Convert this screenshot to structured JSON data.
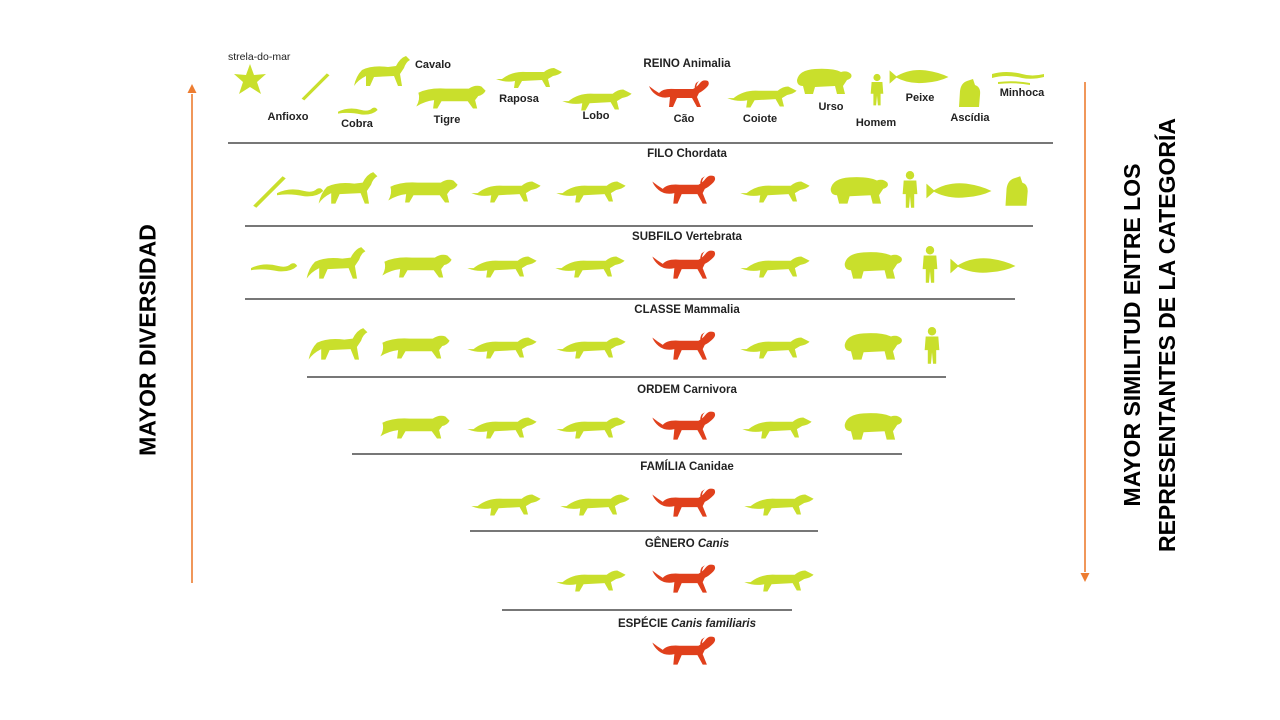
{
  "side_labels": {
    "left": "MAYOR DIVERSIDAD",
    "right_line1": "MAYOR SIMILITUD ENTRE LOS",
    "right_line2": "REPRESENTANTES DE LA CATEGORÍA"
  },
  "colors": {
    "arrow": "#ed7d31",
    "animal": "#c9df2c",
    "highlight": "#e0401c",
    "line": "#4a4a4a"
  },
  "levels": [
    {
      "rank": "REINO",
      "taxon": "Animalia",
      "taxon_italic": false
    },
    {
      "rank": "FILO",
      "taxon": "Chordata",
      "taxon_italic": false
    },
    {
      "rank": "SUBFILO",
      "taxon": "Vertebrata",
      "taxon_italic": false
    },
    {
      "rank": "CLASSE",
      "taxon": "Mammalia",
      "taxon_italic": false
    },
    {
      "rank": "ORDEM",
      "taxon": "Carnivora",
      "taxon_italic": false
    },
    {
      "rank": "FAMÍLIA",
      "taxon": "Canidae",
      "taxon_italic": false
    },
    {
      "rank": "GÊNERO",
      "taxon": "Canis",
      "taxon_italic": true
    },
    {
      "rank": "ESPÉCIE",
      "taxon": "Canis familiaris",
      "taxon_italic": true
    }
  ],
  "kingdom_animals": [
    {
      "name": "Estrela-do-mar",
      "label": "strela-do-mar",
      "icon": "starfish-icon"
    },
    {
      "name": "Anfioxo",
      "label": "Anfioxo",
      "icon": "amphioxus-icon"
    },
    {
      "name": "Cobra",
      "label": "Cobra",
      "icon": "snake-icon"
    },
    {
      "name": "Cavalo",
      "label": "Cavalo",
      "icon": "horse-icon"
    },
    {
      "name": "Tigre",
      "label": "Tigre",
      "icon": "tiger-icon"
    },
    {
      "name": "Raposa",
      "label": "Raposa",
      "icon": "fox-icon"
    },
    {
      "name": "Lobo",
      "label": "Lobo",
      "icon": "wolf-icon"
    },
    {
      "name": "Cão",
      "label": "Cão",
      "icon": "dog-icon",
      "highlight": true
    },
    {
      "name": "Coiote",
      "label": "Coiote",
      "icon": "coyote-icon"
    },
    {
      "name": "Urso",
      "label": "Urso",
      "icon": "bear-icon"
    },
    {
      "name": "Homem",
      "label": "Homem",
      "icon": "human-icon"
    },
    {
      "name": "Peixe",
      "label": "Peixe",
      "icon": "fish-icon"
    },
    {
      "name": "Ascídia",
      "label": "Ascídia",
      "icon": "sea-squirt-icon"
    },
    {
      "name": "Minhoca",
      "label": "Minhoca",
      "icon": "earthworm-icon"
    }
  ],
  "level_members": [
    [
      "Anfioxo",
      "Cobra",
      "Cavalo",
      "Tigre",
      "Raposa",
      "Lobo",
      "Cão",
      "Coiote",
      "Urso",
      "Homem",
      "Peixe",
      "Ascídia"
    ],
    [
      "Cobra",
      "Cavalo",
      "Tigre",
      "Raposa",
      "Lobo",
      "Cão",
      "Coiote",
      "Urso",
      "Homem",
      "Peixe"
    ],
    [
      "Cavalo",
      "Tigre",
      "Raposa",
      "Lobo",
      "Cão",
      "Coiote",
      "Urso",
      "Homem"
    ],
    [
      "Tigre",
      "Raposa",
      "Lobo",
      "Cão",
      "Coiote",
      "Urso"
    ],
    [
      "Raposa",
      "Lobo",
      "Cão",
      "Coiote"
    ],
    [
      "Lobo",
      "Cão",
      "Coiote"
    ],
    [
      "Cão"
    ]
  ]
}
